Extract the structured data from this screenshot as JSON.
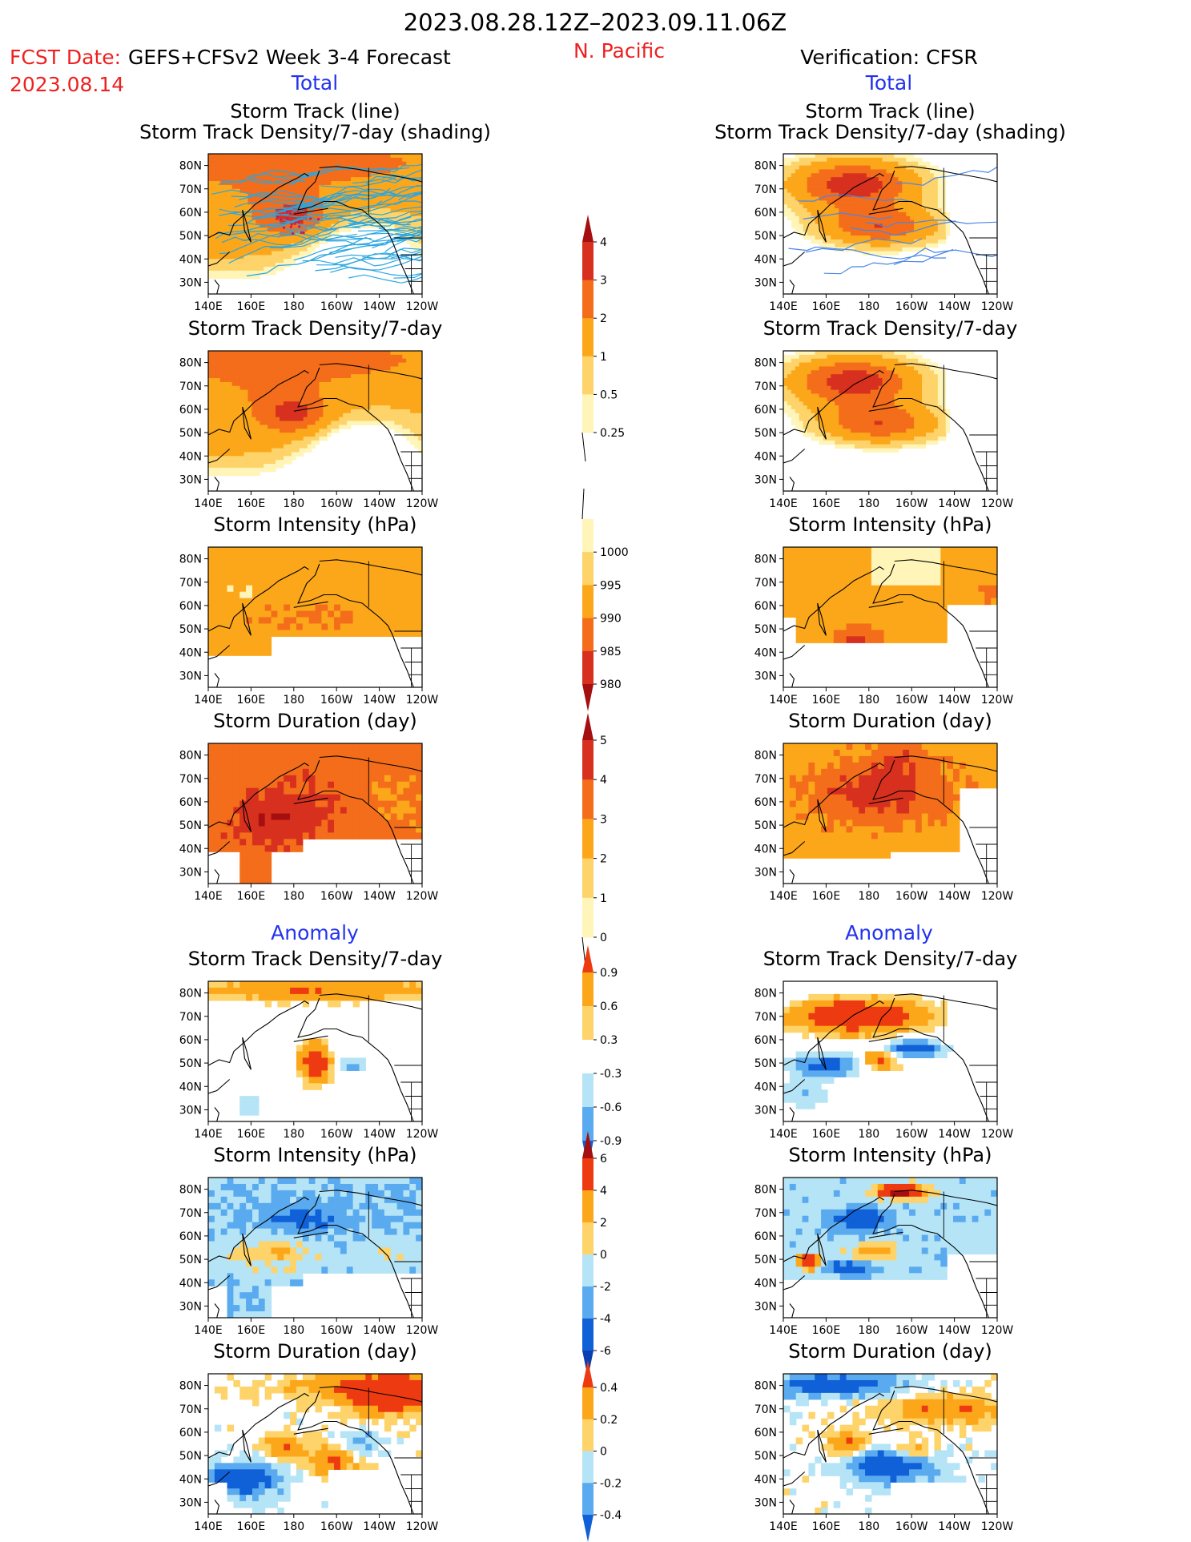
{
  "header": {
    "period": "2023.08.28.12Z–2023.09.11.06Z",
    "fcst_label": "FCST Date:",
    "fcst_date": "2023.08.14",
    "model": "GEFS+CFSv2 Week 3-4 Forecast",
    "region": "N. Pacific",
    "verification": "Verification: CFSR"
  },
  "sections": {
    "total": "Total",
    "anomaly": "Anomaly"
  },
  "axes": {
    "lat_ticks": [
      "80N",
      "70N",
      "60N",
      "50N",
      "40N",
      "30N"
    ],
    "lon_ticks": [
      "140E",
      "160E",
      "180",
      "160W",
      "140W",
      "120W"
    ]
  },
  "panel_titles": {
    "track_line": "Storm Track (line)",
    "track_shading": "Storm Track Density/7-day (shading)",
    "density": "Storm Track Density/7-day",
    "intensity": "Storm Intensity (hPa)",
    "duration": "Storm Duration (day)"
  },
  "colorbars": {
    "density_total": {
      "labels": [
        "4",
        "3",
        "2",
        "1",
        "0.5",
        "0.25"
      ],
      "colors": [
        "#a50f0f",
        "#d7301f",
        "#f46d1a",
        "#fca71a",
        "#fdd36a",
        "#fff5b8"
      ]
    },
    "intensity_total": {
      "labels": [
        "1000",
        "995",
        "990",
        "985",
        "980"
      ],
      "colors": [
        "#fff5b8",
        "#fdd36a",
        "#fca71a",
        "#f46d1a",
        "#d7301f",
        "#a50f0f"
      ]
    },
    "duration_total": {
      "labels": [
        "5",
        "4",
        "3",
        "2",
        "1",
        "0"
      ],
      "colors": [
        "#a50f0f",
        "#d7301f",
        "#f46d1a",
        "#fca71a",
        "#fdd36a",
        "#fff5b8"
      ]
    },
    "density_anom": {
      "labels": [
        "0.9",
        "0.6",
        "0.3",
        "-0.3",
        "-0.6",
        "-0.9"
      ],
      "colors": [
        "#ee3a10",
        "#fca71a",
        "#fdd36a",
        "#ffffff",
        "#b5e4f6",
        "#5aaaf0",
        "#1060d8"
      ]
    },
    "intensity_anom": {
      "labels": [
        "6",
        "4",
        "2",
        "0",
        "-2",
        "-4",
        "-6"
      ],
      "colors": [
        "#a50f0f",
        "#ee3a10",
        "#fca71a",
        "#fdd36a",
        "#b5e4f6",
        "#5aaaf0",
        "#1060d8",
        "#0b3fb0"
      ]
    },
    "duration_anom": {
      "labels": [
        "0.4",
        "0.2",
        "0",
        "-0.2",
        "-0.4"
      ],
      "colors": [
        "#ee3a10",
        "#fca71a",
        "#fdd36a",
        "#b5e4f6",
        "#5aaaf0",
        "#1060d8"
      ]
    }
  },
  "chart_data": {
    "type": "heatmap",
    "lon_range": [
      140,
      240
    ],
    "lat_range": [
      25,
      85
    ],
    "panels": [
      {
        "col": "forecast",
        "row": "track",
        "kind": "track",
        "title": "track_line",
        "subtitle": "track_shading"
      },
      {
        "col": "verification",
        "row": "track",
        "kind": "track",
        "title": "track_line",
        "subtitle": "track_shading"
      },
      {
        "col": "forecast",
        "row": "density",
        "kind": "density_total",
        "title": "density"
      },
      {
        "col": "verification",
        "row": "density",
        "kind": "density_total",
        "title": "density"
      },
      {
        "col": "forecast",
        "row": "intensity",
        "kind": "intensity_total",
        "title": "intensity"
      },
      {
        "col": "verification",
        "row": "intensity",
        "kind": "intensity_total",
        "title": "intensity"
      },
      {
        "col": "forecast",
        "row": "duration",
        "kind": "duration_total",
        "title": "duration"
      },
      {
        "col": "verification",
        "row": "duration",
        "kind": "duration_total",
        "title": "duration"
      },
      {
        "col": "forecast",
        "row": "density_anom",
        "kind": "density_anom",
        "title": "density"
      },
      {
        "col": "verification",
        "row": "density_anom",
        "kind": "density_anom",
        "title": "density"
      },
      {
        "col": "forecast",
        "row": "intensity_anom",
        "kind": "intensity_anom",
        "title": "intensity"
      },
      {
        "col": "verification",
        "row": "intensity_anom",
        "kind": "intensity_anom",
        "title": "intensity"
      },
      {
        "col": "forecast",
        "row": "duration_anom",
        "kind": "duration_anom",
        "title": "duration"
      },
      {
        "col": "verification",
        "row": "duration_anom",
        "kind": "duration_anom",
        "title": "duration"
      }
    ]
  }
}
